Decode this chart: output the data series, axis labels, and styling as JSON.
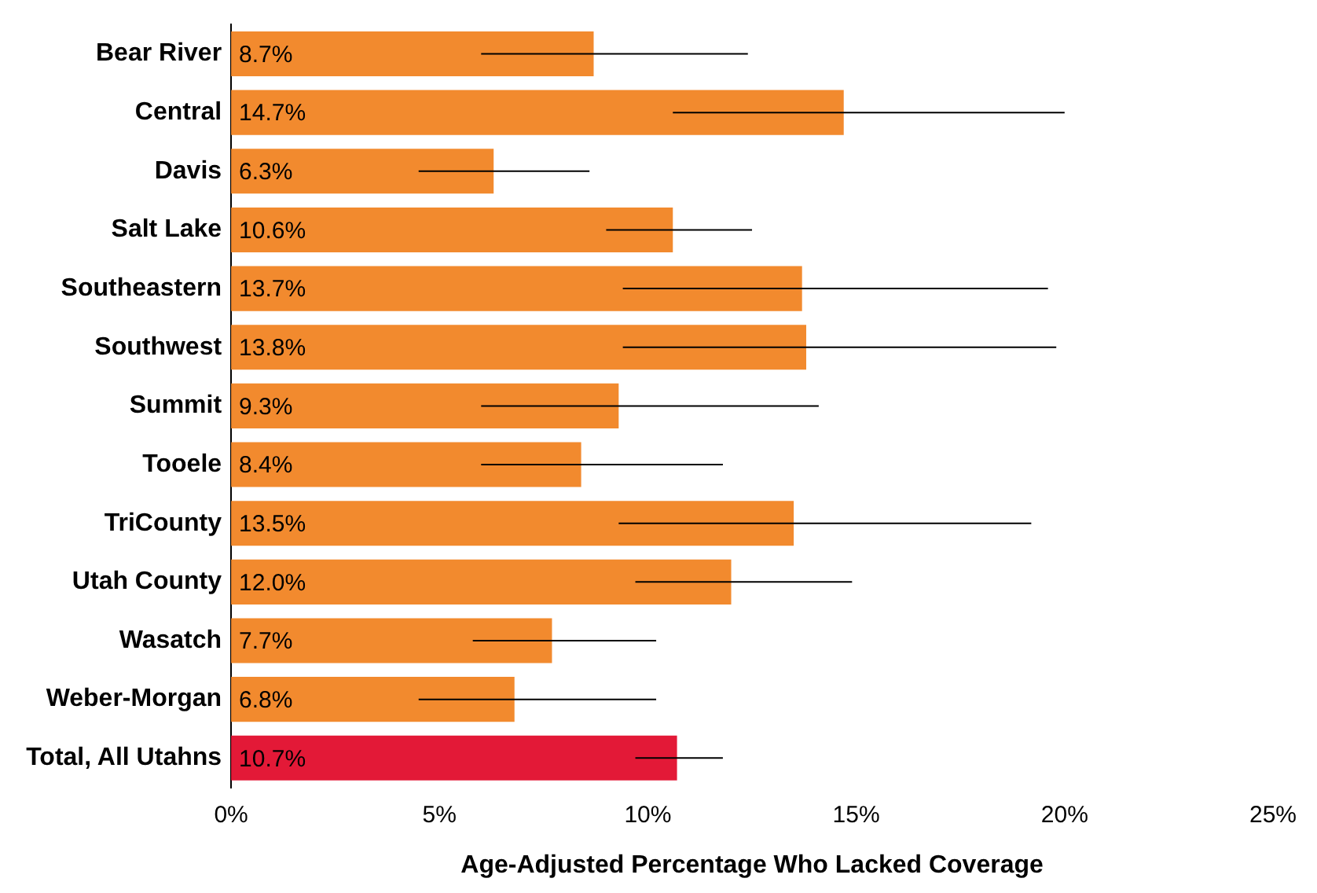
{
  "chart_data": {
    "type": "bar",
    "orientation": "horizontal",
    "xlabel": "Age-Adjusted Percentage Who Lacked Coverage",
    "categories": [
      "Bear River",
      "Central",
      "Davis",
      "Salt Lake",
      "Southeastern",
      "Southwest",
      "Summit",
      "Tooele",
      "TriCounty",
      "Utah County",
      "Wasatch",
      "Weber-Morgan",
      "Total, All Utahns"
    ],
    "values": [
      8.7,
      14.7,
      6.3,
      10.6,
      13.7,
      13.8,
      9.3,
      8.4,
      13.5,
      12.0,
      7.7,
      6.8,
      10.7
    ],
    "colors": [
      "#f28a2e",
      "#f28a2e",
      "#f28a2e",
      "#f28a2e",
      "#f28a2e",
      "#f28a2e",
      "#f28a2e",
      "#f28a2e",
      "#f28a2e",
      "#f28a2e",
      "#f28a2e",
      "#f28a2e",
      "#e31937"
    ],
    "errors": [
      [
        6.0,
        12.4
      ],
      [
        10.6,
        20.0
      ],
      [
        4.5,
        8.6
      ],
      [
        9.0,
        12.5
      ],
      [
        9.4,
        19.6
      ],
      [
        9.4,
        19.8
      ],
      [
        6.0,
        14.1
      ],
      [
        6.0,
        11.8
      ],
      [
        9.3,
        19.2
      ],
      [
        9.7,
        14.9
      ],
      [
        5.8,
        10.2
      ],
      [
        4.5,
        10.2
      ],
      [
        9.7,
        11.8
      ]
    ],
    "value_labels": [
      "8.7%",
      "14.7%",
      "6.3%",
      "10.6%",
      "13.7%",
      "13.8%",
      "9.3%",
      "8.4%",
      "13.5%",
      "12.0%",
      "7.7%",
      "6.8%",
      "10.7%"
    ],
    "xlim": [
      0,
      25
    ],
    "xticks": [
      {
        "value": 0,
        "label": "0%"
      },
      {
        "value": 5,
        "label": "5%"
      },
      {
        "value": 10,
        "label": "10%"
      },
      {
        "value": 15,
        "label": "15%"
      },
      {
        "value": 20,
        "label": "20%"
      },
      {
        "value": 25,
        "label": "25%"
      }
    ],
    "grid": false,
    "legend": false
  }
}
